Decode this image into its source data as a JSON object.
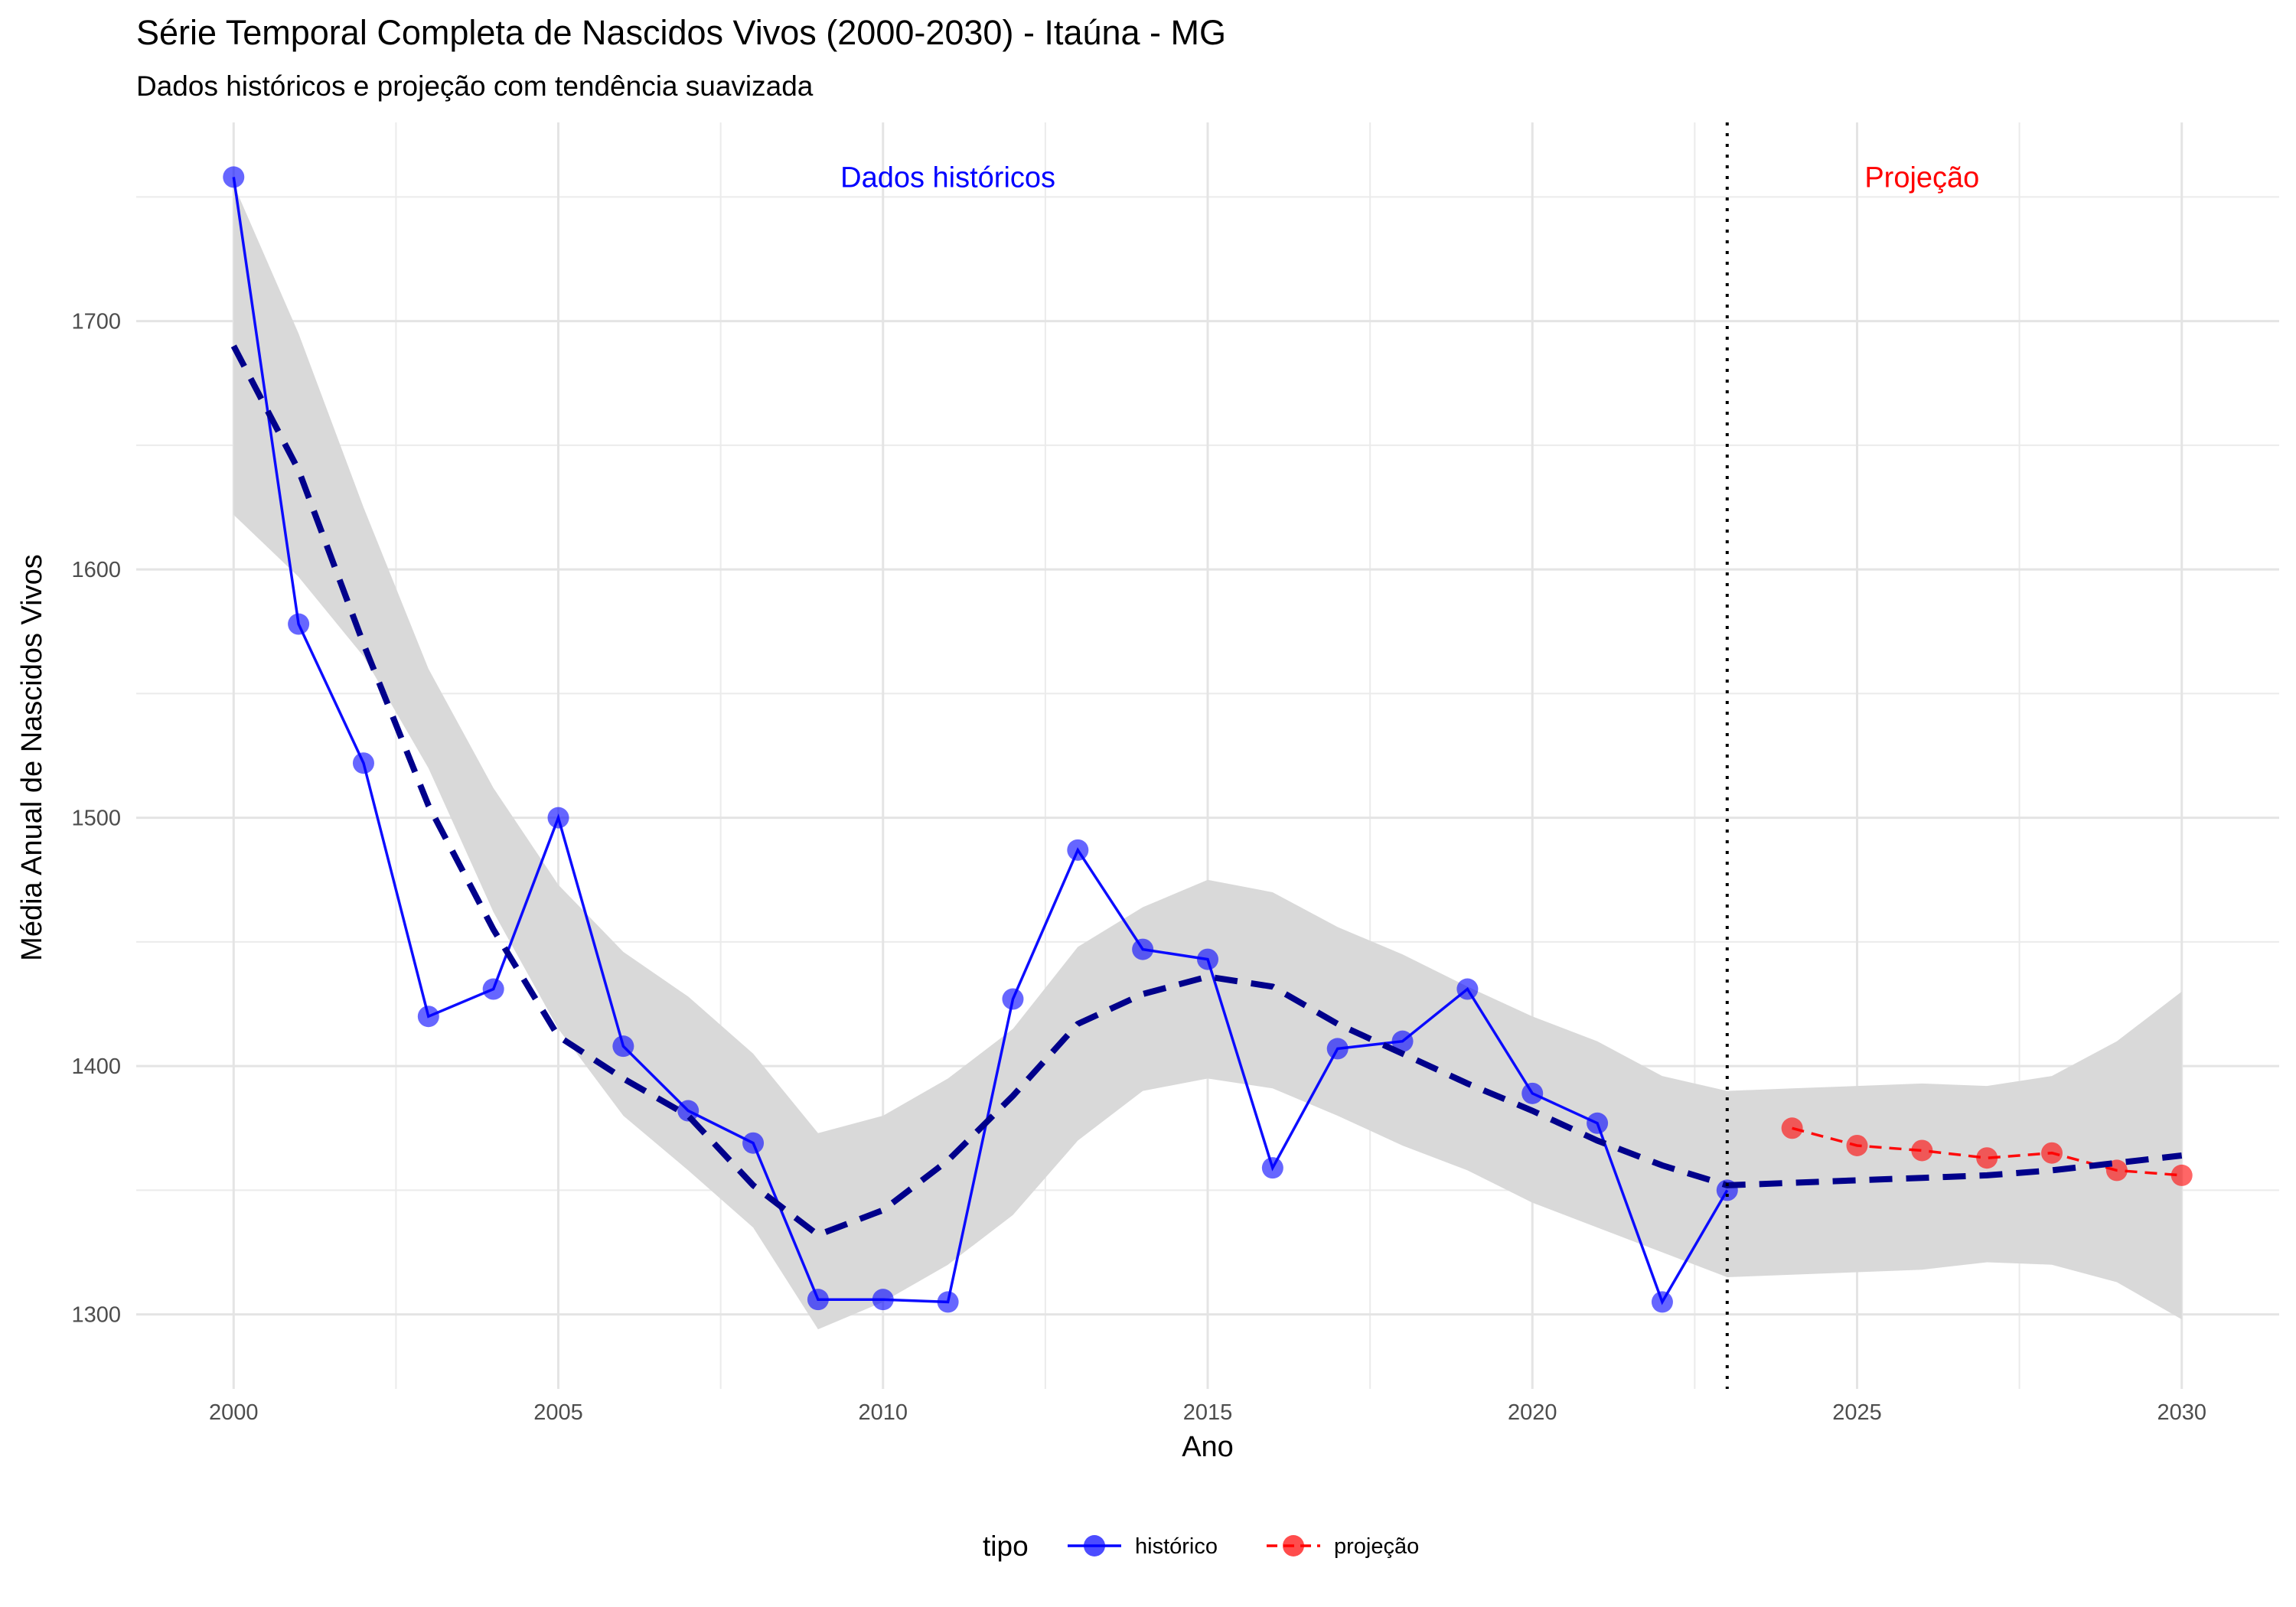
{
  "chart_data": {
    "type": "line",
    "title": "Série Temporal Completa de Nascidos Vivos (2000-2030) -  Itaúna - MG",
    "subtitle": "Dados históricos e projeção com tendência suavizada",
    "xlabel": "Ano",
    "ylabel": "Média Anual de Nascidos Vivos",
    "xlim": [
      1998.5,
      2031.5
    ],
    "ylim": [
      1270,
      1780
    ],
    "x_ticks": [
      "2000",
      "2005",
      "2010",
      "2015",
      "2020",
      "2025",
      "2030"
    ],
    "y_ticks": [
      "1300",
      "1400",
      "1500",
      "1600",
      "1700"
    ],
    "grid": true,
    "legend": {
      "title": "tipo",
      "position": "bottom"
    },
    "series": [
      {
        "name": "histórico",
        "color": "#0000ff",
        "style": "solid",
        "points": [
          {
            "x": 2000,
            "y": 1758
          },
          {
            "x": 2001,
            "y": 1578
          },
          {
            "x": 2002,
            "y": 1522
          },
          {
            "x": 2003,
            "y": 1420
          },
          {
            "x": 2004,
            "y": 1431
          },
          {
            "x": 2005,
            "y": 1500
          },
          {
            "x": 2006,
            "y": 1408
          },
          {
            "x": 2007,
            "y": 1382
          },
          {
            "x": 2008,
            "y": 1369
          },
          {
            "x": 2009,
            "y": 1306
          },
          {
            "x": 2010,
            "y": 1306
          },
          {
            "x": 2011,
            "y": 1305
          },
          {
            "x": 2012,
            "y": 1427
          },
          {
            "x": 2013,
            "y": 1487
          },
          {
            "x": 2014,
            "y": 1447
          },
          {
            "x": 2015,
            "y": 1443
          },
          {
            "x": 2016,
            "y": 1359
          },
          {
            "x": 2017,
            "y": 1407
          },
          {
            "x": 2018,
            "y": 1410
          },
          {
            "x": 2019,
            "y": 1431
          },
          {
            "x": 2020,
            "y": 1389
          },
          {
            "x": 2021,
            "y": 1377
          },
          {
            "x": 2022,
            "y": 1305
          },
          {
            "x": 2023,
            "y": 1350
          }
        ]
      },
      {
        "name": "projeção",
        "color": "#ff0000",
        "style": "dashed",
        "points": [
          {
            "x": 2024,
            "y": 1375
          },
          {
            "x": 2025,
            "y": 1368
          },
          {
            "x": 2026,
            "y": 1366
          },
          {
            "x": 2027,
            "y": 1363
          },
          {
            "x": 2028,
            "y": 1365
          },
          {
            "x": 2029,
            "y": 1358
          },
          {
            "x": 2030,
            "y": 1356
          }
        ]
      }
    ],
    "trend": {
      "color": "#00008b",
      "style": "dashed",
      "points": [
        {
          "x": 2000,
          "y": 1690
        },
        {
          "x": 2001,
          "y": 1640
        },
        {
          "x": 2002,
          "y": 1570
        },
        {
          "x": 2003,
          "y": 1505
        },
        {
          "x": 2004,
          "y": 1455
        },
        {
          "x": 2005,
          "y": 1412
        },
        {
          "x": 2006,
          "y": 1395
        },
        {
          "x": 2007,
          "y": 1380
        },
        {
          "x": 2008,
          "y": 1352
        },
        {
          "x": 2009,
          "y": 1332
        },
        {
          "x": 2010,
          "y": 1342
        },
        {
          "x": 2011,
          "y": 1362
        },
        {
          "x": 2012,
          "y": 1388
        },
        {
          "x": 2013,
          "y": 1417
        },
        {
          "x": 2014,
          "y": 1429
        },
        {
          "x": 2015,
          "y": 1436
        },
        {
          "x": 2016,
          "y": 1432
        },
        {
          "x": 2017,
          "y": 1417
        },
        {
          "x": 2018,
          "y": 1405
        },
        {
          "x": 2019,
          "y": 1393
        },
        {
          "x": 2020,
          "y": 1382
        },
        {
          "x": 2021,
          "y": 1370
        },
        {
          "x": 2022,
          "y": 1360
        },
        {
          "x": 2023,
          "y": 1352
        },
        {
          "x": 2024,
          "y": 1353
        },
        {
          "x": 2025,
          "y": 1354
        },
        {
          "x": 2026,
          "y": 1355
        },
        {
          "x": 2027,
          "y": 1356
        },
        {
          "x": 2028,
          "y": 1358
        },
        {
          "x": 2029,
          "y": 1361
        },
        {
          "x": 2030,
          "y": 1364
        }
      ],
      "band_lower": [
        1622,
        1597,
        1565,
        1520,
        1462,
        1415,
        1380,
        1358,
        1335,
        1294,
        1305,
        1320,
        1340,
        1370,
        1390,
        1395,
        1391,
        1380,
        1368,
        1358,
        1345,
        1335,
        1325,
        1315,
        1316,
        1317,
        1318,
        1321,
        1320,
        1313,
        1298
      ],
      "band_upper": [
        1755,
        1695,
        1625,
        1560,
        1512,
        1473,
        1446,
        1428,
        1405,
        1373,
        1380,
        1395,
        1415,
        1448,
        1464,
        1475,
        1470,
        1456,
        1445,
        1432,
        1420,
        1410,
        1396,
        1390,
        1391,
        1392,
        1393,
        1392,
        1396,
        1410,
        1430
      ],
      "band_color": "#d9d9d9"
    },
    "vline": {
      "x": 2023,
      "style": "dotted",
      "color": "#000000"
    },
    "annotations": [
      {
        "text": "Dados históricos",
        "x": 2011,
        "y": 1758,
        "color": "#0000ff"
      },
      {
        "text": "Projeção",
        "x": 2026,
        "y": 1758,
        "color": "#ff0000"
      }
    ]
  }
}
